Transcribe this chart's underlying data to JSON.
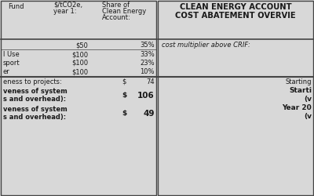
{
  "bg_color": "#d8d8d8",
  "divider_color": "#444444",
  "text_color": "#1a1a1a",
  "left": {
    "header_fund": "Fund",
    "header_cost": "$/tCO2e,\nyear 1:",
    "header_share": "Share of\nClean Energy\nAccount:",
    "r1_val": "$50",
    "r1_pct": "35%",
    "r2_lbl": "l Use",
    "r2_val": "$100",
    "r2_pct": "33%",
    "r3_lbl": "sport",
    "r3_val": "$100",
    "r3_pct": "23%",
    "r4_lbl": "er",
    "r4_val": "$100",
    "r4_pct": "10%",
    "r5_lbl": "eness to projects:",
    "r5_dollar": "$",
    "r5_val": "74",
    "r6_lbl1": "veness of system",
    "r6_lbl2": "s and overhead):",
    "r6_dollar": "$",
    "r6_val": "106",
    "r7_lbl1": "veness of system",
    "r7_lbl2": "s and overhead):",
    "r7_dollar": "$",
    "r7_val": "49"
  },
  "right": {
    "title1": "CLEAN ENERGY ACCOUNT",
    "title2": "COST ABATEMENT OVERVIE",
    "s1": "cost multiplier above CRIF:",
    "s2_1": "Starting",
    "s2_2": "Starti",
    "s2_3": "(v",
    "s2_4": "Year 20",
    "s2_5": "(v"
  },
  "fs_body": 6.0,
  "fs_header": 6.0,
  "fs_title": 7.2,
  "fs_bold": 6.5
}
